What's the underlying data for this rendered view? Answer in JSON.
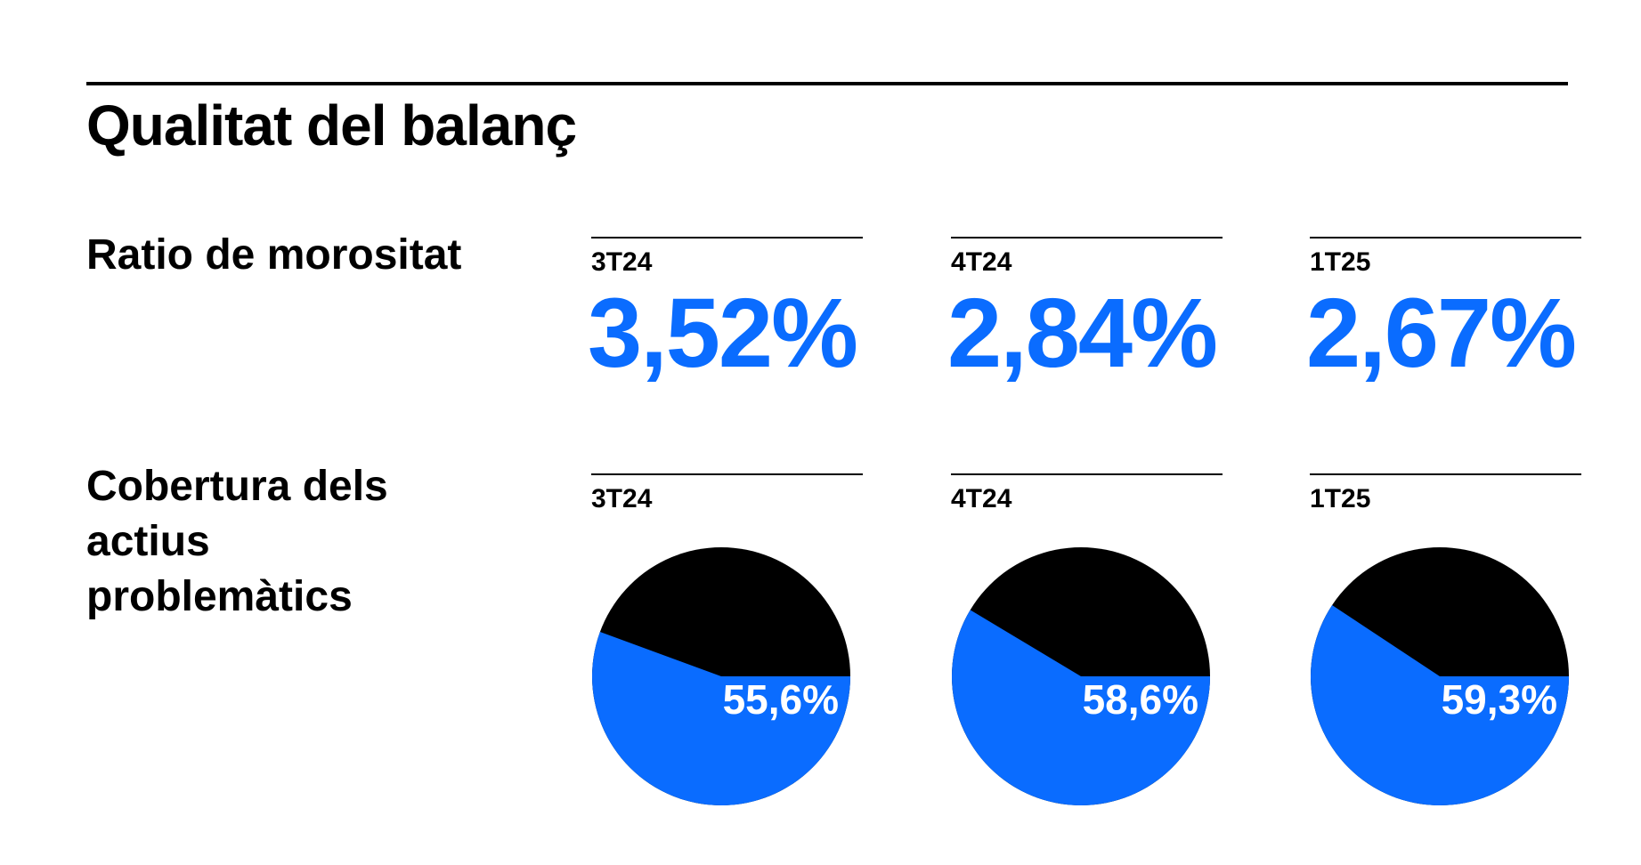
{
  "title": "Qualitat del balanç",
  "npl": {
    "label": "Ratio de morositat",
    "periods": [
      "3T24",
      "4T24",
      "1T25"
    ],
    "values": [
      "3,52%",
      "2,84%",
      "2,67%"
    ]
  },
  "coverage": {
    "label": "Cobertura dels actius problemàtics",
    "periods": [
      "3T24",
      "4T24",
      "1T25"
    ],
    "labels": [
      "55,6%",
      "58,6%",
      "59,3%"
    ]
  },
  "colors": {
    "accent": "#0a6cff",
    "dark": "#000000"
  },
  "chart_data": [
    {
      "type": "table",
      "title": "Ratio de morositat",
      "categories": [
        "3T24",
        "4T24",
        "1T25"
      ],
      "values": [
        3.52,
        2.84,
        2.67
      ],
      "unit": "%"
    },
    {
      "type": "pie",
      "title": "Cobertura dels actius problemàtics",
      "categories": [
        "3T24",
        "4T24",
        "1T25"
      ],
      "values": [
        55.6,
        58.6,
        59.3
      ],
      "unit": "%"
    }
  ]
}
